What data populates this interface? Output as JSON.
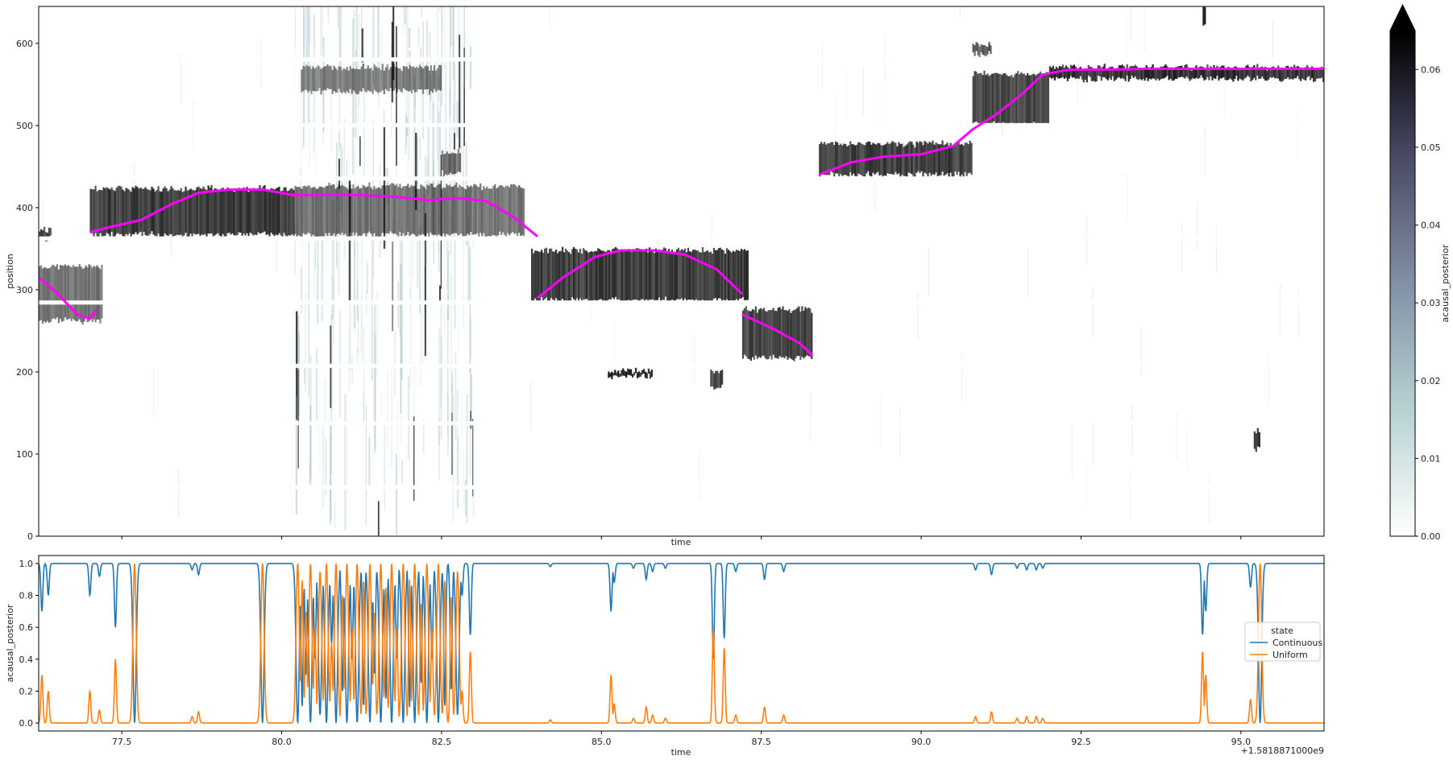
{
  "chart_data": [
    {
      "type": "heatmap",
      "xlabel": "time",
      "ylabel": "position",
      "xlim": [
        76.2,
        96.3
      ],
      "ylim": [
        0,
        645
      ],
      "x_ticks": [
        77.5,
        80.0,
        82.5,
        85.0,
        87.5,
        90.0,
        92.5,
        95.0
      ],
      "y_ticks": [
        0,
        100,
        200,
        300,
        400,
        500,
        600
      ],
      "y_tick_labels": [
        "0",
        "100",
        "200",
        "300",
        "400",
        "500",
        "600"
      ],
      "colormap": "bone_r",
      "colorbar": {
        "label": "acausal_posterior",
        "range": [
          0.0,
          0.065
        ],
        "ticks": [
          0.0,
          0.01,
          0.02,
          0.03,
          0.04,
          0.05,
          0.06
        ],
        "tick_labels": [
          "0.00",
          "0.01",
          "0.02",
          "0.03",
          "0.04",
          "0.05",
          "0.06"
        ],
        "extend": "max"
      },
      "grid": false,
      "position_gaps": [
        [
          57,
          62
        ],
        [
          135,
          140
        ],
        [
          205,
          210
        ],
        [
          282,
          287
        ],
        [
          360,
          365
        ],
        [
          433,
          438
        ],
        [
          498,
          503
        ],
        [
          578,
          583
        ]
      ],
      "overlay_line": {
        "color": "#ff00ff",
        "segments": [
          [
            [
              76.2,
              315
            ],
            [
              76.5,
              295
            ],
            [
              76.8,
              270
            ],
            [
              77.0,
              265
            ],
            [
              77.1,
              275
            ]
          ],
          [
            [
              77.0,
              370
            ],
            [
              77.4,
              378
            ],
            [
              77.8,
              385
            ],
            [
              78.3,
              405
            ],
            [
              78.7,
              418
            ],
            [
              79.2,
              422
            ],
            [
              79.7,
              422
            ],
            [
              80.2,
              415
            ],
            [
              80.8,
              416
            ],
            [
              81.3,
              415
            ],
            [
              81.8,
              413
            ],
            [
              82.3,
              409
            ],
            [
              82.7,
              412
            ],
            [
              83.2,
              408
            ],
            [
              83.6,
              390
            ],
            [
              84.0,
              365
            ]
          ],
          [
            [
              84.0,
              290
            ],
            [
              84.4,
              315
            ],
            [
              84.9,
              340
            ],
            [
              85.3,
              348
            ],
            [
              85.8,
              348
            ],
            [
              86.3,
              343
            ],
            [
              86.8,
              325
            ],
            [
              87.2,
              295
            ]
          ],
          [
            [
              87.2,
              270
            ],
            [
              87.7,
              252
            ],
            [
              88.1,
              235
            ],
            [
              88.3,
              220
            ]
          ],
          [
            [
              88.4,
              440
            ],
            [
              88.9,
              455
            ],
            [
              89.4,
              462
            ],
            [
              90.0,
              465
            ],
            [
              90.5,
              475
            ],
            [
              90.8,
              495
            ],
            [
              91.2,
              515
            ],
            [
              91.6,
              540
            ],
            [
              91.9,
              562
            ],
            [
              92.3,
              568
            ],
            [
              92.8,
              568
            ],
            [
              93.5,
              569
            ],
            [
              94.5,
              569
            ],
            [
              95.5,
              569
            ],
            [
              96.3,
              569
            ]
          ]
        ]
      },
      "posterior_bands": [
        {
          "t0": 76.2,
          "t1": 76.4,
          "y0": 360,
          "y1": 375,
          "w": 0.8
        },
        {
          "t0": 76.2,
          "t1": 77.2,
          "y0": 260,
          "y1": 330,
          "w": 0.6
        },
        {
          "t0": 77.0,
          "t1": 80.2,
          "y0": 365,
          "y1": 425,
          "w": 0.85
        },
        {
          "t0": 80.2,
          "t1": 83.8,
          "y0": 365,
          "y1": 428,
          "w": 0.6
        },
        {
          "t0": 80.3,
          "t1": 82.5,
          "y0": 540,
          "y1": 573,
          "w": 0.55
        },
        {
          "t0": 82.5,
          "t1": 82.8,
          "y0": 440,
          "y1": 470,
          "w": 0.6
        },
        {
          "t0": 83.9,
          "t1": 87.3,
          "y0": 285,
          "y1": 350,
          "w": 0.85
        },
        {
          "t0": 85.1,
          "t1": 85.8,
          "y0": 193,
          "y1": 203,
          "w": 0.95
        },
        {
          "t0": 86.7,
          "t1": 86.9,
          "y0": 180,
          "y1": 203,
          "w": 0.8
        },
        {
          "t0": 87.2,
          "t1": 88.3,
          "y0": 215,
          "y1": 278,
          "w": 0.8
        },
        {
          "t0": 88.4,
          "t1": 90.8,
          "y0": 438,
          "y1": 480,
          "w": 0.85
        },
        {
          "t0": 90.8,
          "t1": 92.0,
          "y0": 500,
          "y1": 565,
          "w": 0.8
        },
        {
          "t0": 92.0,
          "t1": 96.3,
          "y0": 555,
          "y1": 573,
          "w": 0.9
        },
        {
          "t0": 94.4,
          "t1": 94.45,
          "y0": 620,
          "y1": 645,
          "w": 0.9
        },
        {
          "t0": 95.2,
          "t1": 95.3,
          "y0": 105,
          "y1": 130,
          "w": 0.9
        },
        {
          "t0": 90.8,
          "t1": 91.1,
          "y0": 585,
          "y1": 600,
          "w": 0.7
        }
      ],
      "noise_window": [
        80.2,
        83.0
      ]
    },
    {
      "type": "line",
      "xlabel": "time",
      "ylabel": "acausal_posterior",
      "xlim": [
        76.2,
        96.3
      ],
      "ylim": [
        -0.05,
        1.05
      ],
      "x_ticks": [
        77.5,
        80.0,
        82.5,
        85.0,
        87.5,
        90.0,
        92.5,
        95.0
      ],
      "x_tick_labels": [
        "77.5",
        "80.0",
        "82.5",
        "85.0",
        "87.5",
        "90.0",
        "92.5",
        "95.0"
      ],
      "y_ticks": [
        0.0,
        0.2,
        0.4,
        0.6,
        0.8,
        1.0
      ],
      "y_tick_labels": [
        "0.0",
        "0.2",
        "0.4",
        "0.6",
        "0.8",
        "1.0"
      ],
      "x_offset_label": "+1.5818871000e9",
      "legend": {
        "title": "state",
        "placement": "center-right"
      },
      "series": [
        {
          "name": "Continuous",
          "color": "#1f77b4"
        },
        {
          "name": "Uniform",
          "color": "#ff7f0e"
        }
      ],
      "uniform_spikes": [
        [
          76.25,
          0.3
        ],
        [
          76.35,
          0.2
        ],
        [
          77.0,
          0.2
        ],
        [
          77.15,
          0.08
        ],
        [
          77.4,
          0.4
        ],
        [
          77.7,
          1.0
        ],
        [
          78.6,
          0.04
        ],
        [
          78.7,
          0.07
        ],
        [
          79.7,
          1.0
        ],
        [
          80.25,
          1.0
        ],
        [
          80.32,
          0.9
        ],
        [
          80.38,
          0.7
        ],
        [
          80.45,
          1.0
        ],
        [
          80.52,
          0.6
        ],
        [
          80.6,
          0.95
        ],
        [
          80.7,
          1.0
        ],
        [
          80.78,
          0.5
        ],
        [
          80.85,
          1.0
        ],
        [
          80.95,
          0.8
        ],
        [
          81.02,
          1.0
        ],
        [
          81.1,
          0.6
        ],
        [
          81.18,
          1.0
        ],
        [
          81.28,
          0.9
        ],
        [
          81.38,
          1.0
        ],
        [
          81.45,
          0.7
        ],
        [
          81.55,
          1.0
        ],
        [
          81.63,
          0.85
        ],
        [
          81.72,
          1.0
        ],
        [
          81.8,
          0.6
        ],
        [
          81.9,
          1.0
        ],
        [
          82.0,
          0.9
        ],
        [
          82.08,
          1.0
        ],
        [
          82.18,
          0.75
        ],
        [
          82.27,
          1.0
        ],
        [
          82.35,
          0.6
        ],
        [
          82.45,
          1.0
        ],
        [
          82.55,
          0.9
        ],
        [
          82.65,
          0.8
        ],
        [
          82.75,
          0.95
        ],
        [
          82.82,
          0.2
        ],
        [
          82.95,
          0.45
        ],
        [
          84.2,
          0.02
        ],
        [
          85.15,
          0.3
        ],
        [
          85.2,
          0.12
        ],
        [
          85.5,
          0.03
        ],
        [
          85.7,
          0.1
        ],
        [
          85.8,
          0.05
        ],
        [
          86.0,
          0.03
        ],
        [
          86.75,
          0.6
        ],
        [
          86.92,
          0.47
        ],
        [
          87.1,
          0.05
        ],
        [
          87.55,
          0.1
        ],
        [
          87.85,
          0.05
        ],
        [
          90.85,
          0.04
        ],
        [
          91.1,
          0.07
        ],
        [
          91.5,
          0.03
        ],
        [
          91.65,
          0.04
        ],
        [
          91.8,
          0.04
        ],
        [
          91.9,
          0.03
        ],
        [
          94.4,
          0.45
        ],
        [
          94.45,
          0.3
        ],
        [
          95.15,
          0.15
        ],
        [
          95.3,
          1.0
        ]
      ]
    }
  ]
}
